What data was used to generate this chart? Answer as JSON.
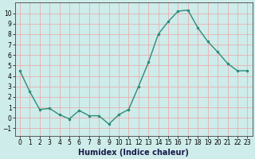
{
  "x": [
    0,
    1,
    2,
    3,
    4,
    5,
    6,
    7,
    8,
    9,
    10,
    11,
    12,
    13,
    14,
    15,
    16,
    17,
    18,
    19,
    20,
    21,
    22,
    23
  ],
  "y": [
    4.5,
    2.5,
    0.8,
    0.9,
    0.3,
    -0.1,
    0.7,
    0.2,
    0.2,
    -0.6,
    0.3,
    0.8,
    3.0,
    5.3,
    8.0,
    9.2,
    10.2,
    10.3,
    8.6,
    7.3,
    6.3,
    5.2,
    4.5,
    4.5
  ],
  "line_color": "#2d8b7a",
  "marker": ".",
  "marker_size": 3,
  "line_width": 1.0,
  "bg_color": "#ceecea",
  "grid_color": "#e8b0b0",
  "xlabel": "Humidex (Indice chaleur)",
  "xlim": [
    -0.5,
    23.5
  ],
  "ylim": [
    -1.7,
    11.0
  ],
  "yticks": [
    -1,
    0,
    1,
    2,
    3,
    4,
    5,
    6,
    7,
    8,
    9,
    10
  ],
  "xticks": [
    0,
    1,
    2,
    3,
    4,
    5,
    6,
    7,
    8,
    9,
    10,
    11,
    12,
    13,
    14,
    15,
    16,
    17,
    18,
    19,
    20,
    21,
    22,
    23
  ],
  "tick_label_fontsize": 5.5,
  "xlabel_fontsize": 7.0
}
